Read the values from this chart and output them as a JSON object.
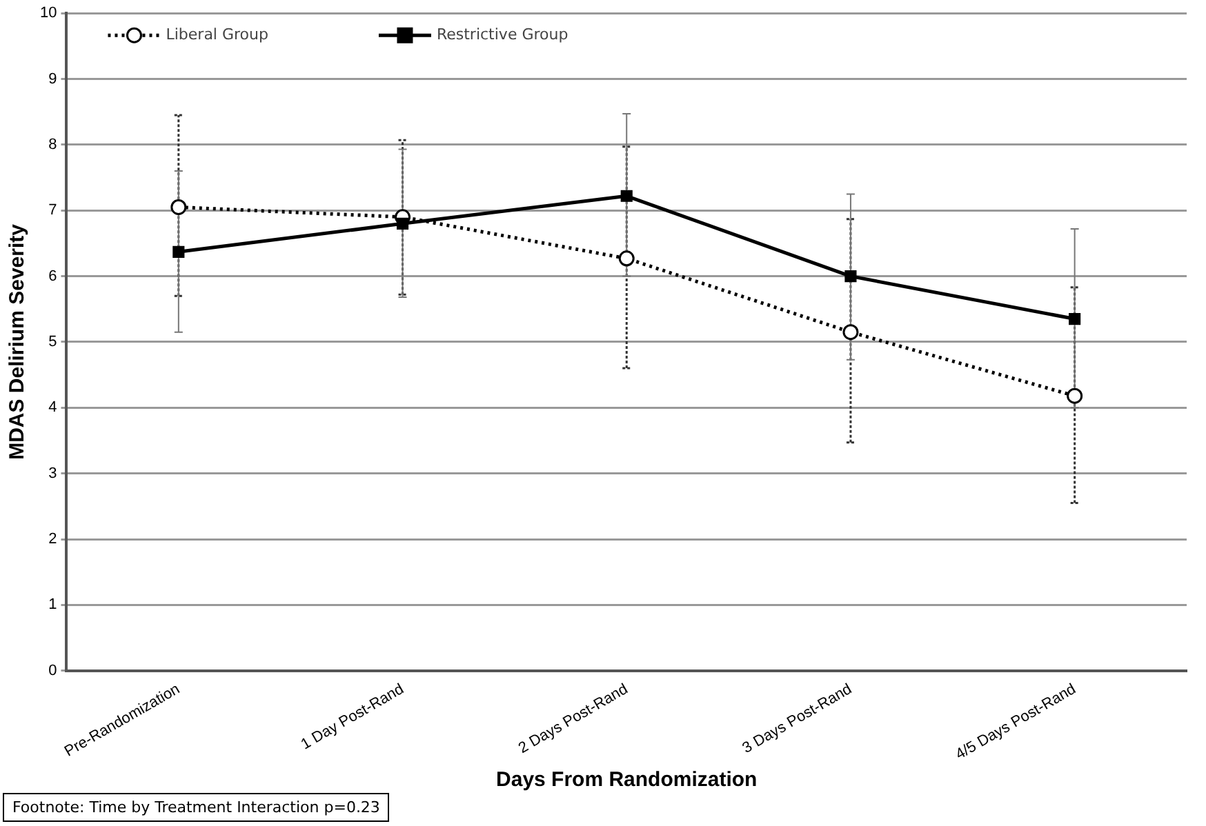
{
  "chart_data": {
    "type": "line",
    "xlabel": "Days From Randomization",
    "ylabel": "MDAS Delirium Severity",
    "categories": [
      "Pre-Randomization",
      "1 Day Post-Rand",
      "2 Days Post-Rand",
      "3 Days Post-Rand",
      "4/5 Days Post-Rand"
    ],
    "series": [
      {
        "name": "Liberal Group",
        "color": "#000000",
        "marker": "circle",
        "line_style": "dotted",
        "values": [
          7.05,
          6.9,
          6.27,
          5.15,
          4.18
        ],
        "errors": [
          [
            5.7,
            8.45
          ],
          [
            5.72,
            8.07
          ],
          [
            4.6,
            7.97
          ],
          [
            3.47,
            6.87
          ],
          [
            2.55,
            5.83
          ]
        ]
      },
      {
        "name": "Restrictive Group",
        "color": "#000000",
        "marker": "square",
        "line_style": "solid",
        "values": [
          6.37,
          6.8,
          7.22,
          6.0,
          5.35
        ],
        "errors": [
          [
            5.15,
            7.6
          ],
          [
            5.68,
            7.93
          ],
          [
            6.0,
            8.47
          ],
          [
            4.73,
            7.25
          ],
          [
            4.0,
            6.72
          ]
        ]
      }
    ],
    "ylim": [
      0,
      10
    ],
    "yticks": [
      0,
      1,
      2,
      3,
      4,
      5,
      6,
      7,
      8,
      9,
      10
    ],
    "grid": "y",
    "legend": "top left",
    "annotations": [
      "Footnote: Time by Treatment Interaction p=0.23"
    ]
  }
}
